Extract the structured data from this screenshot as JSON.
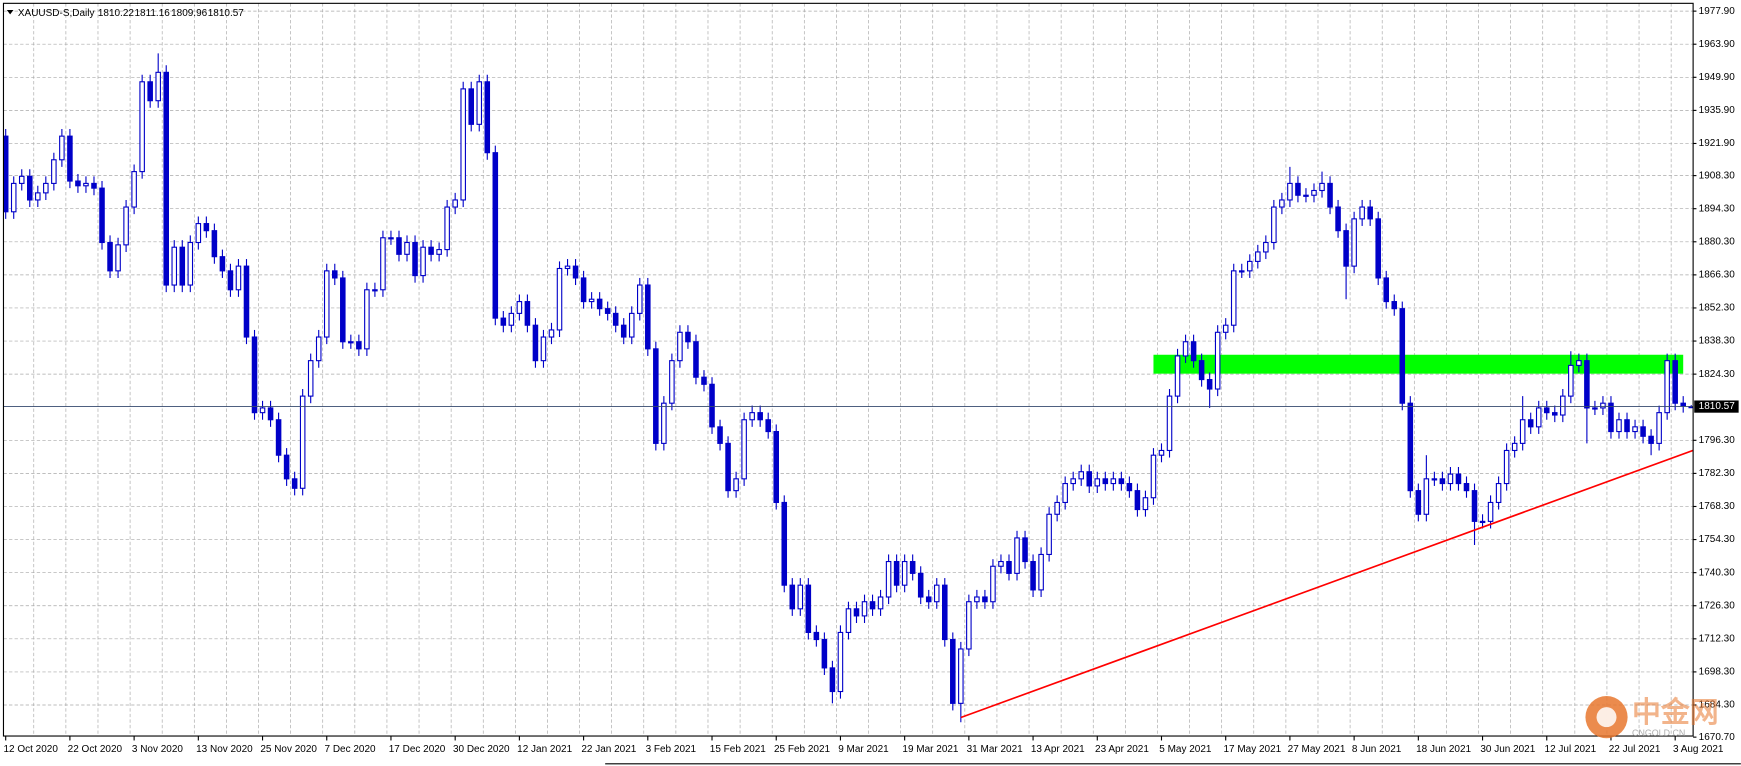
{
  "chart_data": {
    "type": "candlestick",
    "symbol": "XAUUSD-S,Daily",
    "color": "#0000c8",
    "bull_fill": "#ffffff",
    "grid": true,
    "ylim": [
      1670.7,
      1981.2
    ],
    "yticks": [
      {
        "value": 1977.9,
        "label": "1977.90"
      },
      {
        "value": 1963.9,
        "label": "1963.90"
      },
      {
        "value": 1949.9,
        "label": "1949.90"
      },
      {
        "value": 1935.9,
        "label": "1935.90"
      },
      {
        "value": 1921.9,
        "label": "1921.90"
      },
      {
        "value": 1908.3,
        "label": "1908.30"
      },
      {
        "value": 1894.3,
        "label": "1894.30"
      },
      {
        "value": 1880.3,
        "label": "1880.30"
      },
      {
        "value": 1866.3,
        "label": "1866.30"
      },
      {
        "value": 1852.3,
        "label": "1852.30"
      },
      {
        "value": 1838.3,
        "label": "1838.30"
      },
      {
        "value": 1824.3,
        "label": "1824.30"
      },
      {
        "value": 1796.3,
        "label": "1796.30"
      },
      {
        "value": 1782.3,
        "label": "1782.30"
      },
      {
        "value": 1768.3,
        "label": "1768.30"
      },
      {
        "value": 1754.3,
        "label": "1754.30"
      },
      {
        "value": 1740.3,
        "label": "1740.30"
      },
      {
        "value": 1726.3,
        "label": "1726.30"
      },
      {
        "value": 1712.3,
        "label": "1712.30"
      },
      {
        "value": 1698.3,
        "label": "1698.30"
      },
      {
        "value": 1684.3,
        "label": "1684.30"
      },
      {
        "value": 1670.7,
        "label": "1670.70"
      }
    ],
    "categories": [
      "12 Oct 2020",
      null,
      null,
      null,
      null,
      null,
      null,
      null,
      "22 Oct 2020",
      null,
      null,
      null,
      null,
      null,
      null,
      null,
      "3 Nov 2020",
      null,
      null,
      null,
      null,
      null,
      null,
      null,
      "13 Nov 2020",
      null,
      null,
      null,
      null,
      null,
      null,
      null,
      "25 Nov 2020",
      null,
      null,
      null,
      null,
      null,
      null,
      null,
      "7 Dec 2020",
      null,
      null,
      null,
      null,
      null,
      null,
      null,
      "17 Dec 2020",
      null,
      null,
      null,
      null,
      null,
      null,
      null,
      "30 Dec 2020",
      null,
      null,
      null,
      null,
      null,
      null,
      null,
      "12 Jan 2021",
      null,
      null,
      null,
      null,
      null,
      null,
      null,
      "22 Jan 2021",
      null,
      null,
      null,
      null,
      null,
      null,
      null,
      "3 Feb 2021",
      null,
      null,
      null,
      null,
      null,
      null,
      null,
      "15 Feb 2021",
      null,
      null,
      null,
      null,
      null,
      null,
      null,
      "25 Feb 2021",
      null,
      null,
      null,
      null,
      null,
      null,
      null,
      "9 Mar 2021",
      null,
      null,
      null,
      null,
      null,
      null,
      null,
      "19 Mar 2021",
      null,
      null,
      null,
      null,
      null,
      null,
      null,
      "31 Mar 2021",
      null,
      null,
      null,
      null,
      null,
      null,
      null,
      "13 Apr 2021",
      null,
      null,
      null,
      null,
      null,
      null,
      null,
      "23 Apr 2021",
      null,
      null,
      null,
      null,
      null,
      null,
      null,
      "5 May 2021",
      null,
      null,
      null,
      null,
      null,
      null,
      null,
      "17 May 2021",
      null,
      null,
      null,
      null,
      null,
      null,
      null,
      "27 May 2021",
      null,
      null,
      null,
      null,
      null,
      null,
      null,
      "8 Jun 2021",
      null,
      null,
      null,
      null,
      null,
      null,
      null,
      "18 Jun 2021",
      null,
      null,
      null,
      null,
      null,
      null,
      null,
      "30 Jun 2021",
      null,
      null,
      null,
      null,
      null,
      null,
      null,
      "12 Jul 2021",
      null,
      null,
      null,
      null,
      null,
      null,
      null,
      "22 Jul 2021",
      null,
      null,
      null,
      null,
      null,
      null,
      null,
      "3 Aug 2021",
      null,
      null
    ],
    "open": [
      1925,
      1893,
      1905,
      1908,
      1898,
      1901,
      1905,
      1915,
      1925,
      1906,
      1904,
      1905,
      1903,
      1880,
      1868,
      1879,
      1895,
      1910,
      1948,
      1940,
      1952,
      1862,
      1878,
      1862,
      1880,
      1888,
      1885,
      1874,
      1868,
      1860,
      1870,
      1840,
      1808,
      1810,
      1805,
      1790,
      1780,
      1776,
      1815,
      1830,
      1840,
      1868,
      1865,
      1838,
      1838,
      1835,
      1860,
      1860,
      1882,
      1882,
      1875,
      1880,
      1866,
      1878,
      1875,
      1877,
      1895,
      1898,
      1945,
      1930,
      1948,
      1918,
      1848,
      1845,
      1850,
      1855,
      1845,
      1830,
      1840,
      1843,
      1869,
      1870,
      1865,
      1855,
      1856,
      1852,
      1850,
      1845,
      1840,
      1850,
      1862,
      1835,
      1795,
      1812,
      1830,
      1842,
      1838,
      1823,
      1820,
      1802,
      1795,
      1775,
      1780,
      1805,
      1808,
      1805,
      1800,
      1770,
      1735,
      1725,
      1735,
      1715,
      1712,
      1700,
      1690,
      1715,
      1725,
      1722,
      1728,
      1725,
      1730,
      1745,
      1735,
      1745,
      1740,
      1730,
      1728,
      1735,
      1712,
      1685,
      1708,
      1728,
      1730,
      1728,
      1743,
      1745,
      1740,
      1755,
      1745,
      1733,
      1748,
      1765,
      1770,
      1778,
      1780,
      1783,
      1777,
      1780,
      1778,
      1780,
      1778,
      1775,
      1767,
      1772,
      1790,
      1792,
      1815,
      1832,
      1838,
      1830,
      1822,
      1818,
      1842,
      1845,
      1868,
      1868,
      1872,
      1876,
      1880,
      1895,
      1898,
      1905,
      1900,
      1900,
      1902,
      1905,
      1895,
      1885,
      1870,
      1890,
      1895,
      1890,
      1865,
      1855,
      1852,
      1812,
      1775,
      1765,
      1780,
      1780,
      1778,
      1782,
      1778,
      1775,
      1762,
      1762,
      1770,
      1778,
      1792,
      1795,
      1805,
      1802,
      1810,
      1808,
      1807,
      1815,
      1828,
      1830,
      1810,
      1810,
      1812,
      1800,
      1805,
      1800,
      1802,
      1798,
      1795,
      1808,
      1830,
      1812,
      1810.22
    ],
    "high": [
      1928,
      1908,
      1911,
      1911,
      1904,
      1908,
      1918,
      1928,
      1928,
      1909,
      1908,
      1908,
      1906,
      1883,
      1882,
      1898,
      1913,
      1951,
      1951,
      1960,
      1955,
      1881,
      1881,
      1883,
      1891,
      1891,
      1888,
      1877,
      1871,
      1873,
      1873,
      1843,
      1813,
      1813,
      1808,
      1793,
      1783,
      1818,
      1833,
      1843,
      1871,
      1871,
      1868,
      1841,
      1841,
      1863,
      1863,
      1885,
      1885,
      1885,
      1883,
      1883,
      1881,
      1881,
      1880,
      1898,
      1901,
      1948,
      1948,
      1951,
      1951,
      1921,
      1851,
      1853,
      1858,
      1858,
      1848,
      1843,
      1846,
      1872,
      1873,
      1873,
      1868,
      1859,
      1859,
      1855,
      1853,
      1848,
      1853,
      1865,
      1865,
      1838,
      1815,
      1833,
      1845,
      1845,
      1841,
      1826,
      1823,
      1805,
      1798,
      1783,
      1808,
      1811,
      1811,
      1808,
      1803,
      1773,
      1738,
      1738,
      1738,
      1718,
      1715,
      1703,
      1718,
      1728,
      1728,
      1731,
      1731,
      1733,
      1748,
      1748,
      1748,
      1748,
      1743,
      1733,
      1738,
      1738,
      1715,
      1711,
      1731,
      1733,
      1733,
      1746,
      1748,
      1748,
      1758,
      1758,
      1748,
      1751,
      1768,
      1773,
      1781,
      1783,
      1786,
      1786,
      1783,
      1783,
      1783,
      1783,
      1781,
      1778,
      1775,
      1793,
      1795,
      1818,
      1835,
      1841,
      1841,
      1833,
      1825,
      1845,
      1848,
      1871,
      1871,
      1875,
      1879,
      1883,
      1898,
      1901,
      1912,
      1908,
      1903,
      1905,
      1910,
      1908,
      1898,
      1888,
      1893,
      1898,
      1898,
      1893,
      1868,
      1858,
      1855,
      1815,
      1778,
      1790,
      1783,
      1783,
      1785,
      1785,
      1781,
      1778,
      1765,
      1773,
      1781,
      1795,
      1798,
      1815,
      1808,
      1813,
      1813,
      1811,
      1818,
      1834,
      1833,
      1833,
      1813,
      1815,
      1815,
      1808,
      1808,
      1805,
      1805,
      1801,
      1811,
      1833,
      1833,
      1815,
      1811.16
    ],
    "low": [
      1890,
      1890,
      1902,
      1895,
      1895,
      1898,
      1902,
      1912,
      1903,
      1901,
      1901,
      1900,
      1877,
      1865,
      1865,
      1876,
      1892,
      1907,
      1937,
      1937,
      1859,
      1859,
      1859,
      1859,
      1877,
      1882,
      1871,
      1865,
      1857,
      1857,
      1837,
      1805,
      1805,
      1802,
      1787,
      1777,
      1773,
      1773,
      1812,
      1827,
      1837,
      1862,
      1835,
      1835,
      1832,
      1832,
      1857,
      1857,
      1879,
      1872,
      1872,
      1863,
      1863,
      1872,
      1872,
      1874,
      1892,
      1895,
      1927,
      1927,
      1915,
      1845,
      1842,
      1842,
      1847,
      1842,
      1827,
      1827,
      1837,
      1840,
      1866,
      1862,
      1852,
      1852,
      1849,
      1847,
      1842,
      1837,
      1837,
      1847,
      1832,
      1792,
      1792,
      1809,
      1827,
      1835,
      1820,
      1817,
      1799,
      1792,
      1772,
      1772,
      1777,
      1802,
      1802,
      1797,
      1767,
      1732,
      1722,
      1722,
      1712,
      1709,
      1697,
      1685,
      1687,
      1712,
      1719,
      1719,
      1722,
      1722,
      1727,
      1732,
      1732,
      1737,
      1727,
      1725,
      1725,
      1709,
      1682,
      1677,
      1705,
      1725,
      1725,
      1725,
      1740,
      1737,
      1737,
      1742,
      1730,
      1730,
      1745,
      1762,
      1767,
      1775,
      1777,
      1774,
      1774,
      1775,
      1775,
      1775,
      1772,
      1764,
      1764,
      1769,
      1787,
      1789,
      1812,
      1829,
      1827,
      1819,
      1810,
      1815,
      1839,
      1842,
      1865,
      1865,
      1869,
      1873,
      1877,
      1892,
      1895,
      1897,
      1897,
      1897,
      1899,
      1892,
      1882,
      1856,
      1867,
      1887,
      1887,
      1862,
      1852,
      1849,
      1809,
      1772,
      1762,
      1762,
      1777,
      1775,
      1775,
      1775,
      1772,
      1752,
      1759,
      1759,
      1767,
      1775,
      1789,
      1792,
      1799,
      1799,
      1805,
      1804,
      1804,
      1812,
      1825,
      1795,
      1807,
      1807,
      1797,
      1797,
      1797,
      1797,
      1795,
      1790,
      1792,
      1805,
      1809,
      1808,
      1809.96
    ],
    "close": [
      1893,
      1905,
      1908,
      1898,
      1901,
      1905,
      1915,
      1925,
      1906,
      1904,
      1905,
      1903,
      1880,
      1868,
      1879,
      1895,
      1910,
      1948,
      1940,
      1952,
      1862,
      1878,
      1862,
      1880,
      1888,
      1885,
      1874,
      1868,
      1860,
      1870,
      1840,
      1808,
      1810,
      1805,
      1790,
      1780,
      1776,
      1815,
      1830,
      1840,
      1868,
      1865,
      1838,
      1838,
      1835,
      1860,
      1860,
      1882,
      1882,
      1875,
      1880,
      1866,
      1878,
      1875,
      1877,
      1895,
      1898,
      1945,
      1930,
      1948,
      1918,
      1848,
      1845,
      1850,
      1855,
      1845,
      1830,
      1840,
      1843,
      1869,
      1870,
      1865,
      1855,
      1856,
      1852,
      1850,
      1845,
      1840,
      1850,
      1862,
      1835,
      1795,
      1812,
      1830,
      1842,
      1838,
      1823,
      1820,
      1802,
      1795,
      1775,
      1780,
      1805,
      1808,
      1805,
      1800,
      1770,
      1735,
      1725,
      1735,
      1715,
      1712,
      1700,
      1690,
      1715,
      1725,
      1722,
      1728,
      1725,
      1730,
      1745,
      1735,
      1745,
      1740,
      1730,
      1728,
      1735,
      1712,
      1685,
      1708,
      1728,
      1730,
      1728,
      1743,
      1745,
      1740,
      1755,
      1745,
      1733,
      1748,
      1765,
      1770,
      1778,
      1780,
      1783,
      1777,
      1780,
      1778,
      1780,
      1778,
      1775,
      1767,
      1772,
      1790,
      1792,
      1815,
      1832,
      1838,
      1830,
      1822,
      1818,
      1842,
      1845,
      1868,
      1868,
      1872,
      1876,
      1880,
      1895,
      1898,
      1905,
      1900,
      1900,
      1902,
      1905,
      1895,
      1885,
      1870,
      1890,
      1895,
      1890,
      1865,
      1855,
      1852,
      1812,
      1775,
      1765,
      1780,
      1780,
      1778,
      1782,
      1778,
      1775,
      1762,
      1762,
      1770,
      1778,
      1792,
      1795,
      1805,
      1802,
      1810,
      1808,
      1807,
      1815,
      1828,
      1830,
      1810,
      1810,
      1812,
      1800,
      1805,
      1800,
      1802,
      1798,
      1795,
      1808,
      1830,
      1812,
      1811,
      1810.57
    ],
    "zone": {
      "color": "#00ff00",
      "x": [
        143,
        209
      ],
      "y": [
        1824.5,
        1832.5
      ]
    },
    "trendline": {
      "color": "#ff0000",
      "x": [
        119,
        211
      ],
      "y": [
        1679,
        1793
      ]
    },
    "watermark": {
      "title": "中金网",
      "subtitle": "CNGOLD.CN"
    }
  }
}
